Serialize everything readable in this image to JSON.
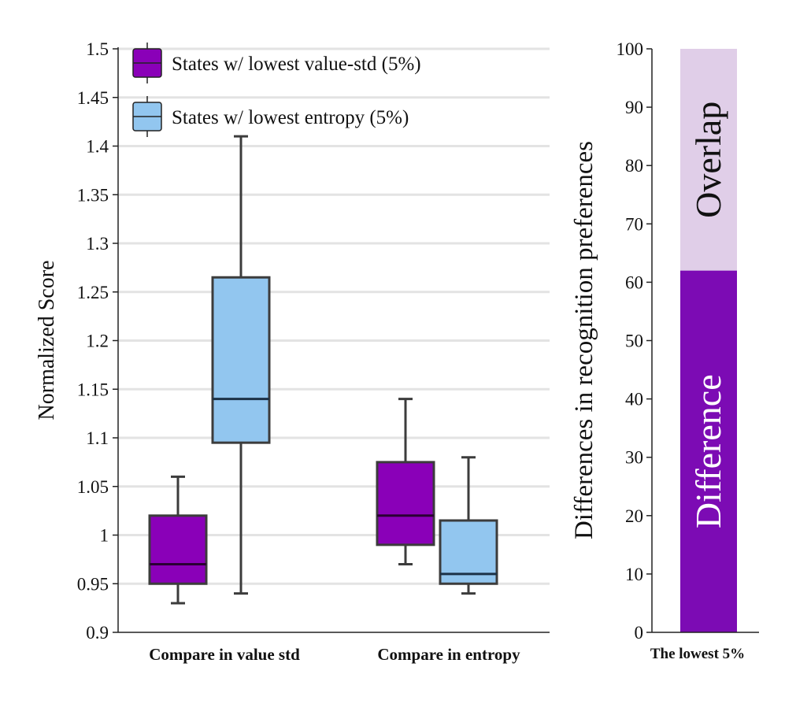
{
  "chart_data": [
    {
      "type": "box",
      "ylabel": "Normalized Score",
      "xlabel": "",
      "ylim": [
        0.9,
        1.5
      ],
      "yticks": [
        0.9,
        0.95,
        1,
        1.05,
        1.1,
        1.15,
        1.2,
        1.25,
        1.3,
        1.35,
        1.4,
        1.45,
        1.5
      ],
      "ytick_labels": [
        "0.9",
        "0.95",
        "1",
        "1.05",
        "1.1",
        "1.15",
        "1.2",
        "1.25",
        "1.3",
        "1.35",
        "1.4",
        "1.45",
        "1.5"
      ],
      "grid": "horizontal",
      "legend_position": "top-left",
      "categories": [
        "Compare in value std",
        "Compare in entropy"
      ],
      "series": [
        {
          "name": "States w/ lowest value-std (5%)",
          "color": "#8A00B8",
          "boxes": [
            {
              "whisker_low": 0.93,
              "q1": 0.95,
              "median": 0.97,
              "q3": 1.02,
              "whisker_high": 1.06
            },
            {
              "whisker_low": 0.97,
              "q1": 0.99,
              "median": 1.02,
              "q3": 1.075,
              "whisker_high": 1.14
            }
          ]
        },
        {
          "name": "States w/ lowest entropy (5%)",
          "color": "#92C6EF",
          "boxes": [
            {
              "whisker_low": 0.94,
              "q1": 1.095,
              "median": 1.14,
              "q3": 1.265,
              "whisker_high": 1.41
            },
            {
              "whisker_low": 0.94,
              "q1": 0.95,
              "median": 0.96,
              "q3": 1.015,
              "whisker_high": 1.08
            }
          ]
        }
      ]
    },
    {
      "type": "stacked-bar",
      "ylabel": "Differences in recognition preferences",
      "ylim": [
        0,
        100
      ],
      "yticks": [
        0,
        10,
        20,
        30,
        40,
        50,
        60,
        70,
        80,
        90,
        100
      ],
      "ytick_labels": [
        "0",
        "10",
        "20",
        "30",
        "40",
        "50",
        "60",
        "70",
        "80",
        "90",
        "100"
      ],
      "categories": [
        "The lowest 5%"
      ],
      "series": [
        {
          "name": "Difference",
          "values": [
            62
          ],
          "color": "#7C0BB4"
        },
        {
          "name": "Overlap",
          "values": [
            38
          ],
          "color": "#E0CEE8"
        }
      ]
    }
  ]
}
